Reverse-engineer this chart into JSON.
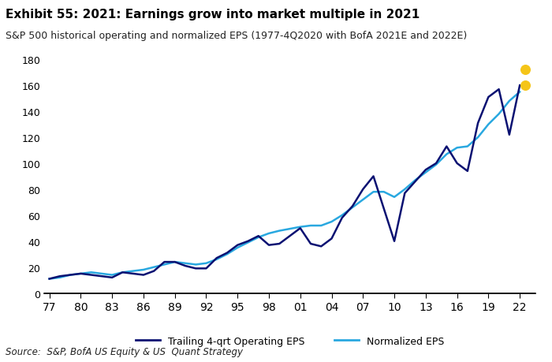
{
  "title": "Exhibit 55: 2021: Earnings grow into market multiple in 2021",
  "subtitle": "S&P 500 historical operating and normalized EPS (1977-4Q2020 with BofA 2021E and 2022E)",
  "source": "Source:  S&P, BofA US Equity & US  Quant Strategy",
  "ylim": [
    0,
    190
  ],
  "yticks": [
    0,
    20,
    40,
    60,
    80,
    100,
    120,
    140,
    160,
    180
  ],
  "xticklabels": [
    "77",
    "80",
    "83",
    "86",
    "89",
    "92",
    "95",
    "98",
    "01",
    "04",
    "07",
    "10",
    "13",
    "16",
    "19",
    "22"
  ],
  "xtick_positions": [
    0,
    3,
    6,
    9,
    12,
    15,
    18,
    21,
    24,
    27,
    30,
    33,
    36,
    39,
    42,
    45
  ],
  "xlim": [
    -0.5,
    46.5
  ],
  "operating_eps_x": [
    0,
    1,
    2,
    3,
    4,
    5,
    6,
    7,
    8,
    9,
    10,
    11,
    12,
    13,
    14,
    15,
    16,
    17,
    18,
    19,
    20,
    21,
    22,
    24,
    25,
    26,
    27,
    28,
    29,
    30,
    31,
    32,
    33,
    34,
    35,
    36,
    37,
    38,
    39,
    40,
    41,
    42,
    43,
    44,
    45
  ],
  "operating_eps_y": [
    11,
    13,
    14,
    15,
    14,
    13,
    12,
    16,
    15,
    14,
    17,
    24,
    24,
    21,
    19,
    19,
    27,
    31,
    37,
    40,
    44,
    37,
    38,
    50,
    38,
    36,
    42,
    58,
    67,
    80,
    90,
    65,
    40,
    77,
    86,
    95,
    100,
    113,
    100,
    94,
    131,
    151,
    157,
    122,
    160
  ],
  "normalized_eps_x": [
    0,
    1,
    2,
    3,
    4,
    5,
    6,
    7,
    8,
    9,
    10,
    11,
    12,
    13,
    14,
    15,
    16,
    17,
    18,
    19,
    20,
    21,
    22,
    24,
    25,
    26,
    27,
    28,
    29,
    30,
    31,
    32,
    33,
    34,
    35,
    36,
    37,
    38,
    39,
    40,
    41,
    42,
    43,
    44,
    45
  ],
  "normalized_eps_y": [
    11,
    12,
    14,
    15,
    16,
    15,
    14,
    16,
    17,
    18,
    20,
    22,
    24,
    23,
    22,
    23,
    26,
    30,
    35,
    39,
    43,
    46,
    48,
    51,
    52,
    52,
    55,
    60,
    66,
    72,
    78,
    78,
    74,
    80,
    87,
    93,
    99,
    107,
    112,
    113,
    120,
    130,
    138,
    148,
    155
  ],
  "dot_2021E_x": 45.5,
  "dot_2021E_y": 160,
  "dot_2022E_x": 45.5,
  "dot_2022E_y": 172,
  "dot_color": "#f5c518",
  "operating_color": "#0a1172",
  "normalized_color": "#29a8e0",
  "legend_label_operating": "Trailing 4-qrt Operating EPS",
  "legend_label_normalized": "Normalized EPS",
  "title_fontsize": 11,
  "subtitle_fontsize": 9,
  "source_fontsize": 8.5,
  "tick_fontsize": 9,
  "background_color": "#ffffff"
}
